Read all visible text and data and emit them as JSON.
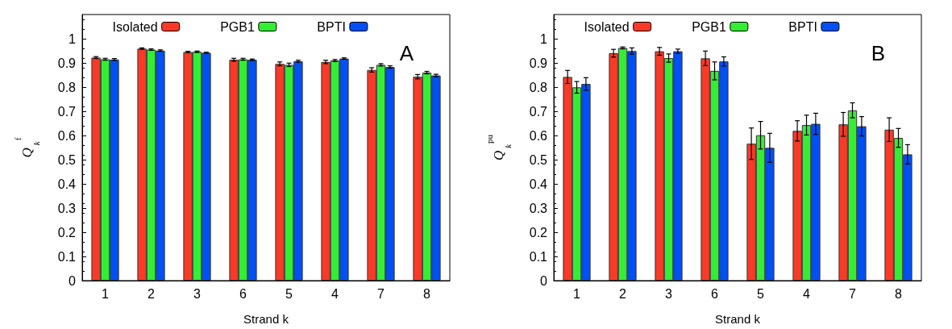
{
  "chart_data": [
    {
      "type": "bar",
      "xlabel": "Strand k",
      "ylabel": "Q$_{k}$$^{f}$",
      "annotations": [
        "A"
      ],
      "categories": [
        "1",
        "2",
        "3",
        "6",
        "5",
        "4",
        "7",
        "8"
      ],
      "legend": "top",
      "grid": false,
      "ylim": [
        0,
        1.1
      ],
      "yticks": [
        0,
        0.1,
        0.2,
        0.3,
        0.4,
        0.5,
        0.6,
        0.7,
        0.8,
        0.9,
        1
      ],
      "series": [
        {
          "name": "Isolated",
          "color": "#f93a27",
          "values": [
            0.922,
            0.959,
            0.945,
            0.913,
            0.896,
            0.904,
            0.871,
            0.843
          ],
          "errors": [
            0.004,
            0.003,
            0.003,
            0.006,
            0.008,
            0.007,
            0.009,
            0.009
          ]
        },
        {
          "name": "PGB1",
          "color": "#33ee33",
          "values": [
            0.915,
            0.955,
            0.946,
            0.915,
            0.892,
            0.91,
            0.892,
            0.86
          ],
          "errors": [
            0.004,
            0.003,
            0.003,
            0.004,
            0.007,
            0.004,
            0.005,
            0.005
          ]
        },
        {
          "name": "BPTI",
          "color": "#0050f5",
          "values": [
            0.914,
            0.951,
            0.942,
            0.913,
            0.907,
            0.918,
            0.883,
            0.848
          ],
          "errors": [
            0.004,
            0.003,
            0.002,
            0.003,
            0.004,
            0.003,
            0.005,
            0.005
          ]
        }
      ]
    },
    {
      "type": "bar",
      "xlabel": "Strand k",
      "ylabel": "Q$_{k}$$^{pu}$",
      "annotations": [
        "B"
      ],
      "categories": [
        "1",
        "2",
        "3",
        "6",
        "5",
        "4",
        "7",
        "8"
      ],
      "legend": "top",
      "grid": false,
      "ylim": [
        0,
        1.1
      ],
      "yticks": [
        0,
        0.1,
        0.2,
        0.3,
        0.4,
        0.5,
        0.6,
        0.7,
        0.8,
        0.9,
        1
      ],
      "series": [
        {
          "name": "Isolated",
          "color": "#f93a27",
          "values": [
            0.842,
            0.94,
            0.948,
            0.919,
            0.566,
            0.619,
            0.646,
            0.624
          ],
          "errors": [
            0.027,
            0.016,
            0.016,
            0.03,
            0.065,
            0.042,
            0.049,
            0.049
          ]
        },
        {
          "name": "PGB1",
          "color": "#33ee33",
          "values": [
            0.799,
            0.962,
            0.92,
            0.867,
            0.601,
            0.643,
            0.704,
            0.59
          ],
          "errors": [
            0.024,
            0.004,
            0.017,
            0.037,
            0.057,
            0.041,
            0.031,
            0.039
          ]
        },
        {
          "name": "BPTI",
          "color": "#0050f5",
          "values": [
            0.813,
            0.949,
            0.948,
            0.906,
            0.549,
            0.648,
            0.638,
            0.522
          ],
          "errors": [
            0.026,
            0.013,
            0.009,
            0.019,
            0.06,
            0.044,
            0.04,
            0.04
          ]
        }
      ]
    }
  ]
}
